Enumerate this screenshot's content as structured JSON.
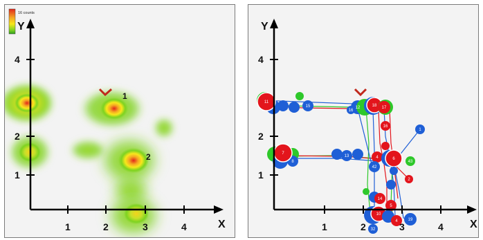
{
  "legend": {
    "label": "16 counts",
    "colors": [
      "#e1261c",
      "#f5a623",
      "#f8e71c",
      "#7ed321",
      "#2e9e1e"
    ]
  },
  "left_panel": {
    "axis_x_label": "X",
    "axis_y_label": "Y",
    "x_ticks": [
      "1",
      "2",
      "3",
      "4"
    ],
    "y_ticks": [
      "1",
      "2",
      "4"
    ],
    "hidden_labels": [
      "1",
      "2"
    ]
  },
  "right_panel": {
    "axis_x_label": "X",
    "axis_y_label": "Y",
    "x_ticks": [
      "1",
      "2",
      "3",
      "4"
    ],
    "y_ticks": [
      "1",
      "2",
      "4"
    ],
    "node_labels": [
      "11",
      "12",
      "15",
      "16",
      "18",
      "17",
      "16",
      "1",
      "2",
      "4",
      "6",
      "43",
      "42",
      "7",
      "8",
      "14",
      "5",
      "10",
      "4",
      "32",
      "19",
      "13"
    ]
  },
  "colors": {
    "red": "#e3151c",
    "blue": "#1f5fd6",
    "green": "#2ec82a"
  }
}
